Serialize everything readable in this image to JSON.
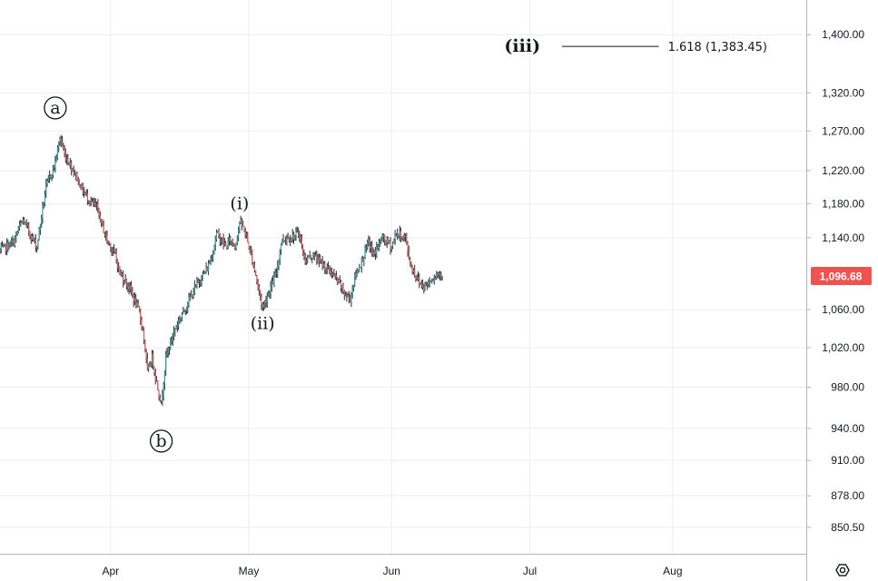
{
  "chart_data": {
    "type": "candlestick",
    "y_axis": {
      "scale": "log",
      "ticks": [
        "1,400.00",
        "1,320.00",
        "1,270.00",
        "1,220.00",
        "1,180.00",
        "1,140.00",
        "1,060.00",
        "1,020.00",
        "980.00",
        "940.00",
        "910.00",
        "878.00",
        "850.50"
      ],
      "tick_values": [
        1400,
        1320,
        1270,
        1220,
        1180,
        1140,
        1060,
        1020,
        980,
        940,
        910,
        878,
        850.5
      ],
      "range": [
        828,
        1450
      ]
    },
    "x_axis": {
      "ticks": [
        "Apr",
        "May",
        "Jun",
        "Jul",
        "Aug"
      ],
      "tick_dates": [
        "2024-04-01",
        "2024-05-01",
        "2024-06-01",
        "2024-07-01",
        "2024-08-01"
      ],
      "range": [
        "2024-03-08",
        "2024-08-30"
      ]
    },
    "grid": true,
    "last_price": {
      "label": "1,096.68",
      "value": 1096.68,
      "color": "#ef5350"
    },
    "colors": {
      "up": "#26a69a",
      "down": "#ef5350",
      "wick": "#2a2e39"
    },
    "price_path": [
      [
        "2024-03-08",
        1125
      ],
      [
        "2024-03-11",
        1135
      ],
      [
        "2024-03-12",
        1150
      ],
      [
        "2024-03-13",
        1160
      ],
      [
        "2024-03-15",
        1140
      ],
      [
        "2024-03-16",
        1130
      ],
      [
        "2024-03-17",
        1165
      ],
      [
        "2024-03-18",
        1200
      ],
      [
        "2024-03-19",
        1215
      ],
      [
        "2024-03-20",
        1230
      ],
      [
        "2024-03-21",
        1262
      ],
      [
        "2024-03-22",
        1240
      ],
      [
        "2024-03-24",
        1220
      ],
      [
        "2024-03-26",
        1195
      ],
      [
        "2024-03-28",
        1180
      ],
      [
        "2024-03-29",
        1175
      ],
      [
        "2024-03-31",
        1140
      ],
      [
        "2024-04-02",
        1120
      ],
      [
        "2024-04-03",
        1100
      ],
      [
        "2024-04-05",
        1085
      ],
      [
        "2024-04-07",
        1060
      ],
      [
        "2024-04-08",
        1040
      ],
      [
        "2024-04-09",
        995
      ],
      [
        "2024-04-10",
        1010
      ],
      [
        "2024-04-11",
        985
      ],
      [
        "2024-04-12",
        963
      ],
      [
        "2024-04-13",
        1010
      ],
      [
        "2024-04-15",
        1040
      ],
      [
        "2024-04-16",
        1050
      ],
      [
        "2024-04-18",
        1070
      ],
      [
        "2024-04-20",
        1090
      ],
      [
        "2024-04-22",
        1105
      ],
      [
        "2024-04-23",
        1120
      ],
      [
        "2024-04-24",
        1145
      ],
      [
        "2024-04-26",
        1130
      ],
      [
        "2024-04-27",
        1138
      ],
      [
        "2024-04-28",
        1130
      ],
      [
        "2024-04-29",
        1158
      ],
      [
        "2024-04-30",
        1150
      ],
      [
        "2024-05-01",
        1130
      ],
      [
        "2024-05-02",
        1110
      ],
      [
        "2024-05-03",
        1085
      ],
      [
        "2024-05-04",
        1062
      ],
      [
        "2024-05-05",
        1075
      ],
      [
        "2024-05-07",
        1100
      ],
      [
        "2024-05-08",
        1135
      ],
      [
        "2024-05-09",
        1140
      ],
      [
        "2024-05-11",
        1142
      ],
      [
        "2024-05-12",
        1145
      ],
      [
        "2024-05-13",
        1115
      ],
      [
        "2024-05-15",
        1120
      ],
      [
        "2024-05-17",
        1110
      ],
      [
        "2024-05-19",
        1100
      ],
      [
        "2024-05-21",
        1085
      ],
      [
        "2024-05-22",
        1075
      ],
      [
        "2024-05-23",
        1072
      ],
      [
        "2024-05-24",
        1095
      ],
      [
        "2024-05-26",
        1120
      ],
      [
        "2024-05-27",
        1135
      ],
      [
        "2024-05-28",
        1120
      ],
      [
        "2024-05-30",
        1140
      ],
      [
        "2024-06-01",
        1130
      ],
      [
        "2024-06-02",
        1145
      ],
      [
        "2024-06-04",
        1140
      ],
      [
        "2024-06-05",
        1110
      ],
      [
        "2024-06-07",
        1090
      ],
      [
        "2024-06-08",
        1085
      ],
      [
        "2024-06-10",
        1095
      ],
      [
        "2024-06-11",
        1100
      ],
      [
        "2024-06-12",
        1096.68
      ]
    ],
    "annotations": [
      {
        "label": "a",
        "circled": true,
        "date": "2024-03-20",
        "value": 1300
      },
      {
        "label": "b",
        "circled": true,
        "date": "2024-04-12",
        "value": 928
      },
      {
        "label": "(i)",
        "circled": false,
        "date": "2024-04-29",
        "value": 1180
      },
      {
        "label": "(ii)",
        "circled": false,
        "date": "2024-05-04",
        "value": 1045
      }
    ],
    "fib_level": {
      "wave_label": "(iii)",
      "ratio_label": "1.618 (1,383.45)",
      "value": 1383.45,
      "line_start": "2024-07-08",
      "line_end": "2024-07-29"
    }
  },
  "settings_icon": "settings-gear-icon"
}
